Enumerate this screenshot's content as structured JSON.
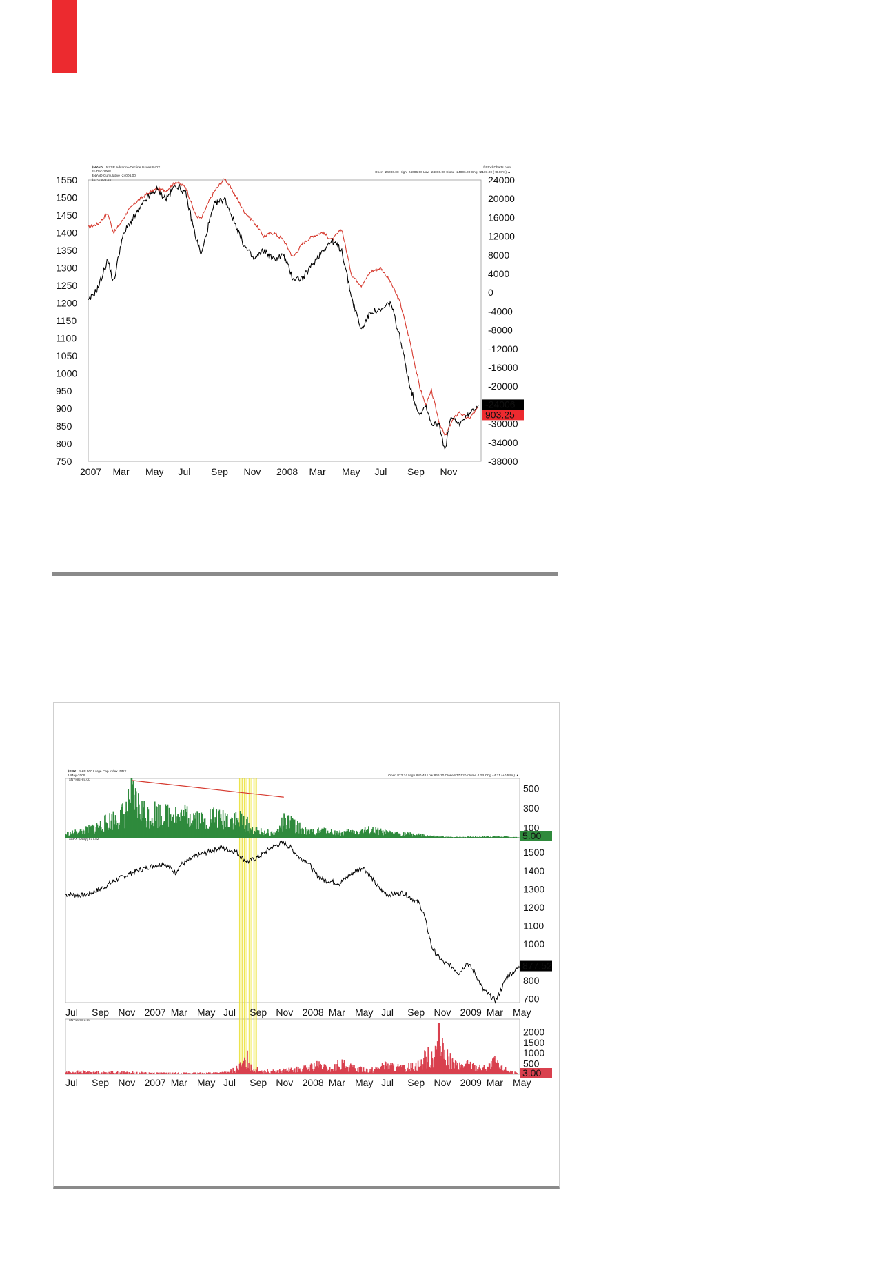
{
  "page": {
    "accent_color": "#ec2a2f"
  },
  "chart_data": [
    {
      "type": "line",
      "header": {
        "symbol": "$NYAD",
        "title": "NYSE Advance-Decline Issues INDX",
        "date": "31-Dec-2008",
        "legend_main": "$NYAD Cumulative -24006.00",
        "legend_overlay": "$SPX 903.25",
        "quote": "Open -24006.00 High -24006.00 Low -24006.00 Close -24006.00 Chg +2107.00 (+8.08%) ▲",
        "credit": "©StockCharts.com"
      },
      "x_ticks": [
        "2007",
        "Mar",
        "May",
        "Jul",
        "Sep",
        "Nov",
        "2008",
        "Mar",
        "May",
        "Jul",
        "Sep",
        "Nov"
      ],
      "left_axis": {
        "ylim": [
          750,
          1550
        ],
        "ticks": [
          1550,
          1500,
          1450,
          1400,
          1350,
          1300,
          1250,
          1200,
          1150,
          1100,
          1050,
          1000,
          950,
          900,
          850,
          800,
          750
        ]
      },
      "right_axis": {
        "ylim": [
          -38000,
          24000
        ],
        "ticks": [
          24000,
          20000,
          16000,
          12000,
          8000,
          4000,
          0,
          -4000,
          -8000,
          -12000,
          -16000,
          -20000,
          -24000,
          -30000,
          -34000,
          -38000
        ]
      },
      "series": [
        {
          "name": "$NYAD",
          "axis": "right",
          "color": "#000000",
          "last_label": "-24006",
          "x": [
            2007.0,
            2007.05,
            2007.1,
            2007.13,
            2007.17,
            2007.2,
            2007.25,
            2007.3,
            2007.35,
            2007.4,
            2007.45,
            2007.5,
            2007.55,
            2007.58,
            2007.62,
            2007.65,
            2007.7,
            2007.75,
            2007.8,
            2007.85,
            2007.9,
            2007.95,
            2008.0,
            2008.05,
            2008.1,
            2008.15,
            2008.2,
            2008.25,
            2008.3,
            2008.35,
            2008.4,
            2008.45,
            2008.5,
            2008.55,
            2008.6,
            2008.65,
            2008.7,
            2008.73,
            2008.76,
            2008.8,
            2008.83,
            2008.86,
            2008.9,
            2008.95,
            2009.0
          ],
          "y": [
            -2000,
            1000,
            7000,
            2000,
            11000,
            14000,
            17000,
            20000,
            22000,
            20000,
            23000,
            21000,
            12000,
            8000,
            15000,
            19000,
            20000,
            15000,
            10000,
            7000,
            9000,
            7000,
            8000,
            3000,
            3000,
            6000,
            9000,
            11000,
            9000,
            -1000,
            -8000,
            -4000,
            -4000,
            -2000,
            -10000,
            -20000,
            -27000,
            -24000,
            -30000,
            -30000,
            -36000,
            -28000,
            -30000,
            -27000,
            -24006
          ]
        },
        {
          "name": "$SPX",
          "axis": "left",
          "color": "#d63a2f",
          "last_label": "903.25",
          "x": [
            2007.0,
            2007.05,
            2007.1,
            2007.13,
            2007.17,
            2007.2,
            2007.25,
            2007.3,
            2007.35,
            2007.4,
            2007.45,
            2007.5,
            2007.55,
            2007.58,
            2007.62,
            2007.65,
            2007.7,
            2007.75,
            2007.8,
            2007.85,
            2007.9,
            2007.95,
            2008.0,
            2008.05,
            2008.1,
            2008.15,
            2008.2,
            2008.25,
            2008.3,
            2008.35,
            2008.4,
            2008.45,
            2008.5,
            2008.55,
            2008.6,
            2008.65,
            2008.7,
            2008.73,
            2008.76,
            2008.8,
            2008.83,
            2008.86,
            2008.9,
            2008.95,
            2009.0
          ],
          "y": [
            1415,
            1425,
            1455,
            1400,
            1430,
            1460,
            1490,
            1510,
            1525,
            1520,
            1545,
            1530,
            1450,
            1440,
            1490,
            1520,
            1555,
            1510,
            1460,
            1430,
            1390,
            1400,
            1380,
            1330,
            1370,
            1390,
            1400,
            1380,
            1410,
            1280,
            1250,
            1290,
            1300,
            1260,
            1200,
            1090,
            960,
            910,
            950,
            860,
            820,
            860,
            890,
            870,
            903.25
          ]
        }
      ]
    },
    {
      "type": "bar",
      "header": {
        "symbol": "$SPX",
        "title": "S&P 500 Large Cap Index INDX",
        "date": "1-May-2009",
        "quote": "Open 872.74 High 880.48 Low 866.10 Close 877.52 Volume 4.2B Chg +4.71 (+0.54%) ▲"
      },
      "upper_panel": {
        "name": "$NYHGH",
        "legend": "$NYHGH 5.00",
        "color": "#2f8a3c",
        "last_label": "5.00",
        "ticks": [
          500,
          300,
          100
        ],
        "ylim": [
          0,
          600
        ],
        "x": [
          2006.5,
          2006.6,
          2006.7,
          2006.8,
          2006.85,
          2006.9,
          2006.95,
          2007.0,
          2007.05,
          2007.1,
          2007.15,
          2007.2,
          2007.25,
          2007.3,
          2007.35,
          2007.4,
          2007.45,
          2007.5,
          2007.55,
          2007.6,
          2007.65,
          2007.7,
          2007.75,
          2007.8,
          2007.85,
          2007.9,
          2008.0,
          2008.1,
          2008.2,
          2008.3,
          2008.4,
          2008.5,
          2008.6,
          2008.7,
          2008.8,
          2008.9,
          2009.0,
          2009.1,
          2009.2,
          2009.33
        ],
        "values": [
          60,
          100,
          180,
          300,
          350,
          580,
          420,
          330,
          380,
          300,
          400,
          280,
          350,
          330,
          220,
          320,
          260,
          300,
          270,
          250,
          120,
          90,
          80,
          60,
          230,
          210,
          80,
          100,
          70,
          90,
          110,
          70,
          60,
          40,
          20,
          10,
          12,
          15,
          20,
          5
        ],
        "trendline": {
          "from": [
            2006.9,
            580
          ],
          "to": [
            2007.85,
            410
          ]
        }
      },
      "price_panel": {
        "name": "$SPX",
        "legend": "$SPX (Daily) 877.52",
        "color": "#000000",
        "last_label": "877.52",
        "ticks": [
          1500,
          1400,
          1300,
          1200,
          1100,
          1000,
          800,
          700
        ],
        "ylim": [
          680,
          1580
        ],
        "x": [
          2006.5,
          2006.6,
          2006.7,
          2006.8,
          2006.9,
          2007.0,
          2007.1,
          2007.17,
          2007.2,
          2007.3,
          2007.4,
          2007.45,
          2007.55,
          2007.6,
          2007.63,
          2007.7,
          2007.78,
          2007.85,
          2007.9,
          2007.95,
          2008.0,
          2008.05,
          2008.1,
          2008.2,
          2008.3,
          2008.35,
          2008.45,
          2008.5,
          2008.6,
          2008.7,
          2008.73,
          2008.78,
          2008.82,
          2008.85,
          2008.9,
          2008.95,
          2009.0,
          2009.05,
          2009.1,
          2009.18,
          2009.25,
          2009.33
        ],
        "values": [
          1270,
          1265,
          1300,
          1350,
          1390,
          1420,
          1440,
          1390,
          1430,
          1480,
          1510,
          1525,
          1505,
          1460,
          1450,
          1480,
          1530,
          1555,
          1520,
          1470,
          1450,
          1380,
          1350,
          1330,
          1400,
          1420,
          1300,
          1270,
          1280,
          1220,
          1160,
          980,
          930,
          900,
          880,
          840,
          900,
          840,
          750,
          690,
          820,
          877.52
        ]
      },
      "lower_panel": {
        "name": "$NYLOW",
        "legend": "$NYLOW 3.00",
        "color": "#d9404e",
        "last_label": "3.00",
        "ticks": [
          2000,
          1500,
          1000,
          500
        ],
        "ylim": [
          0,
          2600
        ],
        "x": [
          2006.5,
          2006.6,
          2006.7,
          2006.8,
          2006.9,
          2007.0,
          2007.1,
          2007.2,
          2007.3,
          2007.4,
          2007.5,
          2007.55,
          2007.6,
          2007.62,
          2007.65,
          2007.7,
          2007.8,
          2007.9,
          2008.0,
          2008.05,
          2008.1,
          2008.15,
          2008.2,
          2008.3,
          2008.35,
          2008.4,
          2008.45,
          2008.5,
          2008.6,
          2008.7,
          2008.72,
          2008.75,
          2008.8,
          2008.82,
          2008.85,
          2008.9,
          2008.95,
          2009.0,
          2009.1,
          2009.15,
          2009.18,
          2009.2,
          2009.33
        ],
        "values": [
          150,
          180,
          120,
          140,
          120,
          100,
          80,
          90,
          80,
          100,
          120,
          350,
          700,
          1100,
          450,
          250,
          200,
          300,
          400,
          600,
          500,
          300,
          700,
          400,
          350,
          300,
          500,
          600,
          400,
          700,
          900,
          1200,
          1600,
          2600,
          1400,
          900,
          500,
          700,
          400,
          600,
          900,
          500,
          3
        ]
      },
      "highlight_bands": [
        2007.58,
        2007.61,
        2007.64,
        2007.67
      ],
      "x_ticks": [
        "Jul",
        "Sep",
        "Nov",
        "2007",
        "Mar",
        "May",
        "Jul",
        "Sep",
        "Nov",
        "2008",
        "Mar",
        "May",
        "Jul",
        "Sep",
        "Nov",
        "2009",
        "Mar",
        "May"
      ]
    }
  ]
}
